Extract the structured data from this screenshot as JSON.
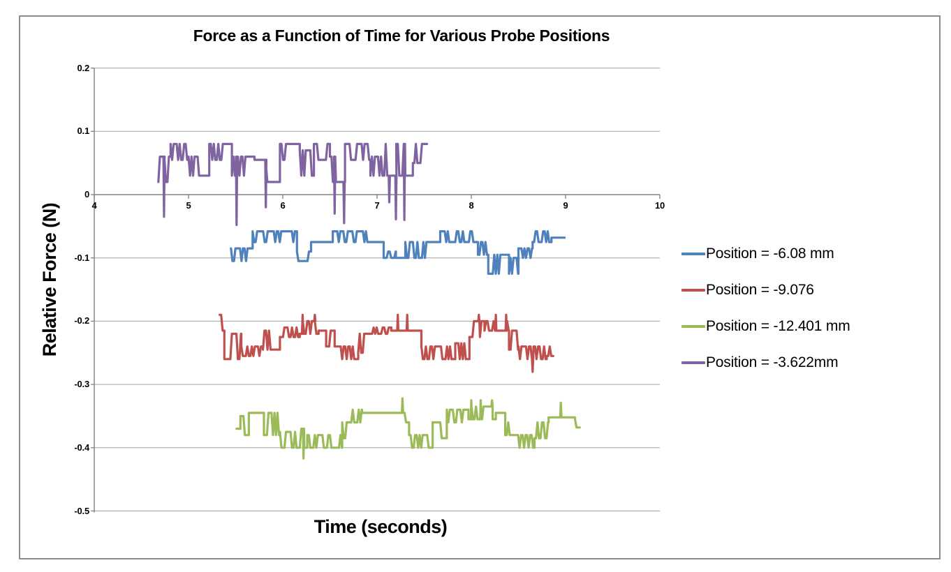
{
  "chart": {
    "title": "Force as a Function of Time for Various Probe Positions",
    "x_axis": {
      "label": "Time (seconds)"
    },
    "y_axis": {
      "label": "Relative Force (N)"
    }
  },
  "style": {
    "gridline_color": "#a0a0a0",
    "axis_color": "#808080",
    "border_color": "#8c8c8c",
    "text_color": "#000000"
  },
  "chart_data": {
    "type": "line",
    "title": "Force as a Function of Time for Various Probe Positions",
    "xlabel": "Time (seconds)",
    "ylabel": "Relative Force (N)",
    "xlim": [
      4,
      10
    ],
    "ylim": [
      -0.5,
      0.2
    ],
    "x_ticks": [
      4,
      5,
      6,
      7,
      8,
      9,
      10
    ],
    "y_ticks": [
      0.2,
      0.1,
      0,
      -0.1,
      -0.2,
      -0.3,
      -0.4,
      -0.5
    ],
    "grid": true,
    "legend_position": "right",
    "segment_format": "[x_start, x_end, level_low, level_high]: signal oscillates in a square-wave between the two force levels; equal levels mean a flat plateau",
    "spike_format": "[x, y]: brief narrow excursion to y at time x",
    "series": [
      {
        "name": "Position = -6.08 mm",
        "color": "#4F81BD",
        "x_range": [
          5.45,
          8.99
        ],
        "segments": [
          [
            5.45,
            5.68,
            -0.105,
            -0.085
          ],
          [
            5.68,
            6.15,
            -0.075,
            -0.058
          ],
          [
            6.15,
            6.3,
            -0.105,
            -0.09
          ],
          [
            6.3,
            6.48,
            -0.075,
            -0.075
          ],
          [
            6.48,
            6.53,
            -0.09,
            -0.075
          ],
          [
            6.53,
            7.07,
            -0.075,
            -0.058
          ],
          [
            7.07,
            7.2,
            -0.1,
            -0.09
          ],
          [
            7.2,
            7.3,
            -0.1,
            -0.1
          ],
          [
            7.3,
            7.55,
            -0.1,
            -0.075
          ],
          [
            7.55,
            7.67,
            -0.075,
            -0.075
          ],
          [
            7.67,
            8.07,
            -0.075,
            -0.058
          ],
          [
            8.07,
            8.18,
            -0.095,
            -0.075
          ],
          [
            8.18,
            8.32,
            -0.125,
            -0.095
          ],
          [
            8.32,
            8.4,
            -0.095,
            -0.095
          ],
          [
            8.4,
            8.5,
            -0.125,
            -0.1
          ],
          [
            8.5,
            8.65,
            -0.1,
            -0.085
          ],
          [
            8.65,
            8.85,
            -0.075,
            -0.058
          ],
          [
            8.85,
            8.99,
            -0.068,
            -0.068
          ]
        ],
        "spikes": []
      },
      {
        "name": "Position = -9.076",
        "color": "#C0504D",
        "x_range": [
          5.33,
          8.87
        ],
        "segments": [
          [
            5.33,
            5.38,
            -0.215,
            -0.19
          ],
          [
            5.38,
            5.56,
            -0.26,
            -0.22
          ],
          [
            5.56,
            5.79,
            -0.255,
            -0.24
          ],
          [
            5.79,
            5.97,
            -0.245,
            -0.215
          ],
          [
            5.97,
            6.18,
            -0.225,
            -0.21
          ],
          [
            6.18,
            6.38,
            -0.22,
            -0.2
          ],
          [
            6.38,
            6.46,
            -0.215,
            -0.215
          ],
          [
            6.46,
            6.55,
            -0.24,
            -0.215
          ],
          [
            6.55,
            6.8,
            -0.26,
            -0.24
          ],
          [
            6.8,
            6.9,
            -0.25,
            -0.22
          ],
          [
            6.9,
            7.15,
            -0.22,
            -0.21
          ],
          [
            7.15,
            7.47,
            -0.215,
            -0.215
          ],
          [
            7.47,
            7.83,
            -0.26,
            -0.24
          ],
          [
            7.83,
            7.98,
            -0.26,
            -0.235
          ],
          [
            7.98,
            8.14,
            -0.225,
            -0.2
          ],
          [
            8.14,
            8.4,
            -0.215,
            -0.2
          ],
          [
            8.4,
            8.5,
            -0.245,
            -0.215
          ],
          [
            8.5,
            8.8,
            -0.26,
            -0.24
          ],
          [
            8.8,
            8.87,
            -0.255,
            -0.24
          ]
        ],
        "spikes": [
          [
            6.21,
            -0.19
          ],
          [
            6.34,
            -0.19
          ],
          [
            7.22,
            -0.19
          ],
          [
            7.32,
            -0.19
          ],
          [
            8.08,
            -0.19
          ],
          [
            8.26,
            -0.19
          ],
          [
            8.37,
            -0.19
          ],
          [
            8.65,
            -0.28
          ]
        ]
      },
      {
        "name": "Position = -12.401 mm",
        "color": "#9BBB59",
        "x_range": [
          5.51,
          9.15
        ],
        "segments": [
          [
            5.51,
            5.55,
            -0.4,
            -0.37
          ],
          [
            5.55,
            5.64,
            -0.38,
            -0.35
          ],
          [
            5.64,
            5.8,
            -0.345,
            -0.345
          ],
          [
            5.8,
            5.97,
            -0.38,
            -0.345
          ],
          [
            5.97,
            6.18,
            -0.4,
            -0.375
          ],
          [
            6.18,
            6.26,
            -0.4,
            -0.37
          ],
          [
            6.26,
            6.63,
            -0.4,
            -0.38
          ],
          [
            6.63,
            6.71,
            -0.385,
            -0.36
          ],
          [
            6.71,
            6.84,
            -0.36,
            -0.34
          ],
          [
            6.84,
            7.26,
            -0.345,
            -0.345
          ],
          [
            7.26,
            7.34,
            -0.36,
            -0.345
          ],
          [
            7.34,
            7.59,
            -0.4,
            -0.38
          ],
          [
            7.59,
            7.74,
            -0.385,
            -0.36
          ],
          [
            7.74,
            7.97,
            -0.36,
            -0.34
          ],
          [
            7.97,
            8.26,
            -0.355,
            -0.335
          ],
          [
            8.26,
            8.36,
            -0.345,
            -0.345
          ],
          [
            8.36,
            8.48,
            -0.38,
            -0.36
          ],
          [
            8.48,
            8.67,
            -0.4,
            -0.38
          ],
          [
            8.67,
            8.82,
            -0.385,
            -0.36
          ],
          [
            8.82,
            9.1,
            -0.352,
            -0.352
          ],
          [
            9.1,
            9.15,
            -0.368,
            -0.355
          ]
        ],
        "spikes": [
          [
            6.22,
            -0.417
          ],
          [
            7.27,
            -0.322
          ],
          [
            8.0,
            -0.325
          ],
          [
            8.1,
            -0.325
          ],
          [
            8.22,
            -0.325
          ],
          [
            8.95,
            -0.329
          ]
        ]
      },
      {
        "name": "Position = -3.622mm",
        "color": "#8064A2",
        "x_range": [
          4.68,
          7.53
        ],
        "segments": [
          [
            4.68,
            4.81,
            0.02,
            0.06
          ],
          [
            4.81,
            5.0,
            0.055,
            0.08
          ],
          [
            5.0,
            5.22,
            0.03,
            0.06
          ],
          [
            5.22,
            5.46,
            0.055,
            0.08
          ],
          [
            5.46,
            5.7,
            0.03,
            0.06
          ],
          [
            5.7,
            5.82,
            0.055,
            0.055
          ],
          [
            5.82,
            5.97,
            0.02,
            0.05
          ],
          [
            5.97,
            6.18,
            0.055,
            0.08
          ],
          [
            6.18,
            6.33,
            0.03,
            0.07
          ],
          [
            6.33,
            6.5,
            0.055,
            0.08
          ],
          [
            6.5,
            6.66,
            0.02,
            0.06
          ],
          [
            6.66,
            6.93,
            0.055,
            0.08
          ],
          [
            6.93,
            7.06,
            0.03,
            0.06
          ],
          [
            7.06,
            7.38,
            0.03,
            0.08
          ],
          [
            7.38,
            7.53,
            0.05,
            0.08
          ]
        ],
        "spikes": [
          [
            4.74,
            -0.035
          ],
          [
            5.51,
            -0.048
          ],
          [
            5.82,
            -0.02
          ],
          [
            6.55,
            -0.03
          ],
          [
            6.65,
            -0.045
          ],
          [
            7.13,
            -0.012
          ],
          [
            7.2,
            -0.039
          ],
          [
            7.29,
            -0.04
          ]
        ]
      }
    ]
  }
}
